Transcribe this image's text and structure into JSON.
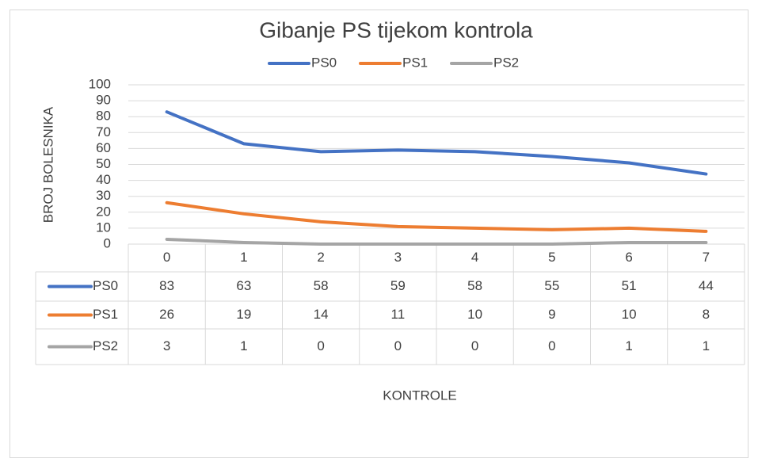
{
  "chart_data": {
    "type": "line",
    "title": "Gibanje PS tijekom kontrola",
    "x_label": "KONTROLE",
    "y_label": "BROJ BOLESNIKA",
    "categories": [
      "0",
      "1",
      "2",
      "3",
      "4",
      "5",
      "6",
      "7"
    ],
    "series": [
      {
        "name": "PS0",
        "color": "#4472c4",
        "values": [
          83,
          63,
          58,
          59,
          58,
          55,
          51,
          44
        ]
      },
      {
        "name": "PS1",
        "color": "#ed7d31",
        "values": [
          26,
          19,
          14,
          11,
          10,
          9,
          10,
          8
        ]
      },
      {
        "name": "PS2",
        "color": "#a5a5a5",
        "values": [
          3,
          1,
          0,
          0,
          0,
          0,
          1,
          1
        ]
      }
    ],
    "ylim": [
      0,
      100
    ],
    "yticks": [
      0,
      10,
      20,
      30,
      40,
      50,
      60,
      70,
      80,
      90,
      100
    ],
    "grid": true,
    "legend": "top"
  }
}
